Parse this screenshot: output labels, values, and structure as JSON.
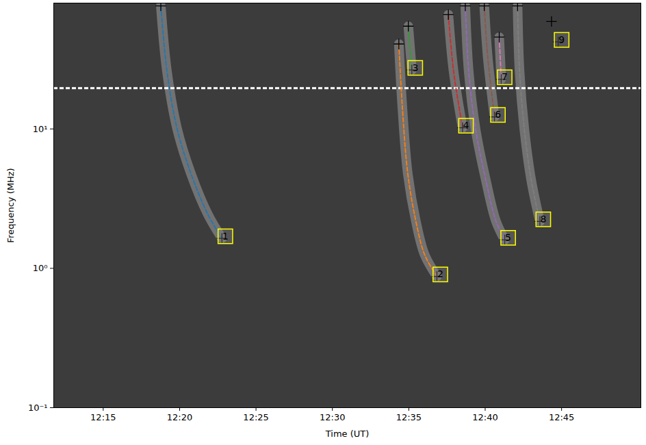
{
  "chart_data": {
    "type": "spectrogram",
    "x_label": "Time (UT)",
    "y_label": "Frequency (MHz)",
    "log": "y",
    "xlim": [
      731.76,
      770.19
    ],
    "xticks": [
      {
        "value": 735,
        "label": "12:15"
      },
      {
        "value": 740,
        "label": "12:20"
      },
      {
        "value": 745,
        "label": "12:25"
      },
      {
        "value": 750,
        "label": "12:30"
      },
      {
        "value": 755,
        "label": "12:35"
      },
      {
        "value": 760,
        "label": "12:40"
      },
      {
        "value": 765,
        "label": "12:45"
      }
    ],
    "ylim": [
      0.1,
      80
    ],
    "yticks": [
      {
        "value": 0.1,
        "label": "10⁻¹"
      },
      {
        "value": 1,
        "label": "10⁰"
      },
      {
        "value": 10,
        "label": "10¹"
      }
    ],
    "hline": {
      "value": 19.6,
      "color": "#ffffff",
      "line_style": "dashed"
    },
    "series": [
      {
        "name": "1",
        "color": "#1f77b4",
        "line_style": "dashed",
        "marker": "plus",
        "x": [
          738.77,
          739.17,
          739.84,
          740.73,
          741.84,
          742.77
        ],
        "values": [
          76.4,
          26.0,
          10.0,
          4.82,
          2.45,
          1.64
        ]
      },
      {
        "name": "2",
        "color": "#ff7f0e",
        "line_style": "dashed",
        "marker": "plus",
        "x": [
          754.35,
          754.57,
          754.93,
          755.46,
          756.04,
          756.84
        ],
        "values": [
          40.7,
          14.8,
          4.82,
          2.19,
          1.25,
          0.874
        ]
      },
      {
        "name": "3",
        "color": "#2ca02c",
        "line_style": "dashed",
        "marker": "plus",
        "x": [
          754.97,
          755.2
        ],
        "values": [
          54.6,
          26.5
        ]
      },
      {
        "name": "4",
        "color": "#d62728",
        "line_style": "dashed",
        "marker": "plus",
        "x": [
          757.59,
          757.93,
          758.52
        ],
        "values": [
          66.1,
          26.0,
          10.2
        ]
      },
      {
        "name": "5",
        "color": "#9467bd",
        "line_style": "dashed",
        "marker": "plus",
        "x": [
          758.7,
          758.92,
          759.37,
          760.04,
          760.7,
          761.28
        ],
        "values": [
          76.4,
          26.0,
          10.0,
          4.31,
          2.19,
          1.6
        ]
      },
      {
        "name": "6",
        "color": "#8c564b",
        "line_style": "dashed",
        "marker": "plus",
        "x": [
          759.94,
          760.17,
          760.61
        ],
        "values": [
          76.4,
          32.5,
          12.2
        ]
      },
      {
        "name": "7",
        "color": "#e377c2",
        "line_style": "dashed",
        "marker": "plus",
        "x": [
          760.92,
          761.05
        ],
        "values": [
          45.6,
          22.7
        ]
      },
      {
        "name": "8",
        "color": "#7f7f7f",
        "line_style": "dashed",
        "marker": "plus",
        "x": [
          762.12,
          762.25,
          762.56,
          763.01,
          763.58
        ],
        "values": [
          76.4,
          26.0,
          10.0,
          4.31,
          2.17
        ]
      },
      {
        "name": "9",
        "color": "#bcbd22",
        "line_style": "none",
        "marker": "plus",
        "x": [
          764.34,
          764.78
        ],
        "values": [
          59.0,
          42.1
        ]
      }
    ]
  }
}
